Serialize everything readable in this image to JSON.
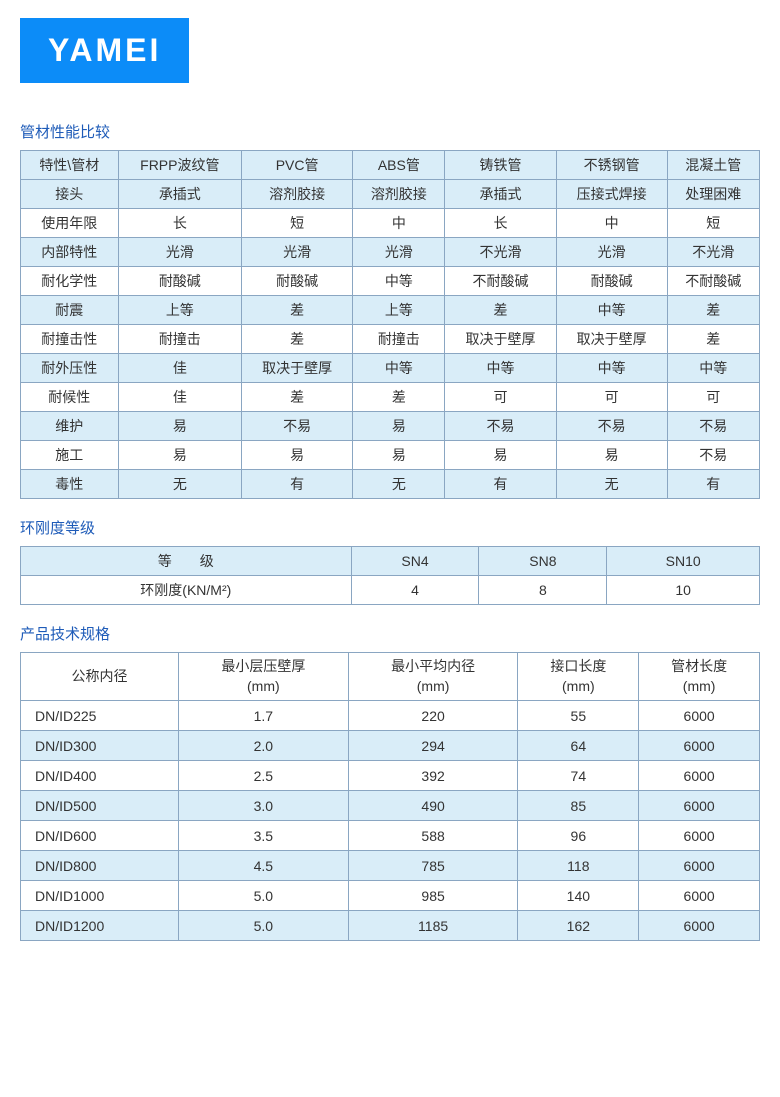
{
  "logo": "YAMEI",
  "colors": {
    "brand": "#0c8cf8",
    "title": "#1e5bb8",
    "border": "#8aa6c2",
    "header_bg": "#d9edf8",
    "row_alt": "#d9edf8",
    "row_bg": "#ffffff",
    "text": "#333333"
  },
  "section1": {
    "title": "管材性能比较",
    "columns": [
      "特性\\管材",
      "FRPP波纹管",
      "PVC管",
      "ABS管",
      "铸铁管",
      "不锈钢管",
      "混凝土管"
    ],
    "rows": [
      [
        "接头",
        "承插式",
        "溶剂胶接",
        "溶剂胶接",
        "承插式",
        "压接式焊接",
        "处理困难"
      ],
      [
        "使用年限",
        "长",
        "短",
        "中",
        "长",
        "中",
        "短"
      ],
      [
        "内部特性",
        "光滑",
        "光滑",
        "光滑",
        "不光滑",
        "光滑",
        "不光滑"
      ],
      [
        "耐化学性",
        "耐酸碱",
        "耐酸碱",
        "中等",
        "不耐酸碱",
        "耐酸碱",
        "不耐酸碱"
      ],
      [
        "耐震",
        "上等",
        "差",
        "上等",
        "差",
        "中等",
        "差"
      ],
      [
        "耐撞击性",
        "耐撞击",
        "差",
        "耐撞击",
        "取决于壁厚",
        "取决于壁厚",
        "差"
      ],
      [
        "耐外压性",
        "佳",
        "取决于壁厚",
        "中等",
        "中等",
        "中等",
        "中等"
      ],
      [
        "耐候性",
        "佳",
        "差",
        "差",
        "可",
        "可",
        "可"
      ],
      [
        "维护",
        "易",
        "不易",
        "易",
        "不易",
        "不易",
        "不易"
      ],
      [
        "施工",
        "易",
        "易",
        "易",
        "易",
        "易",
        "不易"
      ],
      [
        "毒性",
        "无",
        "有",
        "无",
        "有",
        "无",
        "有"
      ]
    ]
  },
  "section2": {
    "title": "环刚度等级",
    "row1": [
      "等　　级",
      "SN4",
      "SN8",
      "SN10"
    ],
    "row2": [
      "环刚度(KN/M²)",
      "4",
      "8",
      "10"
    ]
  },
  "section3": {
    "title": "产品技术规格",
    "columns": [
      "公称内径",
      "最小层压壁厚\n(mm)",
      "最小平均内径\n(mm)",
      "接口长度\n(mm)",
      "管材长度\n(mm)"
    ],
    "rows": [
      [
        "DN/ID225",
        "1.7",
        "220",
        "55",
        "6000"
      ],
      [
        "DN/ID300",
        "2.0",
        "294",
        "64",
        "6000"
      ],
      [
        "DN/ID400",
        "2.5",
        "392",
        "74",
        "6000"
      ],
      [
        "DN/ID500",
        "3.0",
        "490",
        "85",
        "6000"
      ],
      [
        "DN/ID600",
        "3.5",
        "588",
        "96",
        "6000"
      ],
      [
        "DN/ID800",
        "4.5",
        "785",
        "118",
        "6000"
      ],
      [
        "DN/ID1000",
        "5.0",
        "985",
        "140",
        "6000"
      ],
      [
        "DN/ID1200",
        "5.0",
        "1185",
        "162",
        "6000"
      ]
    ]
  }
}
